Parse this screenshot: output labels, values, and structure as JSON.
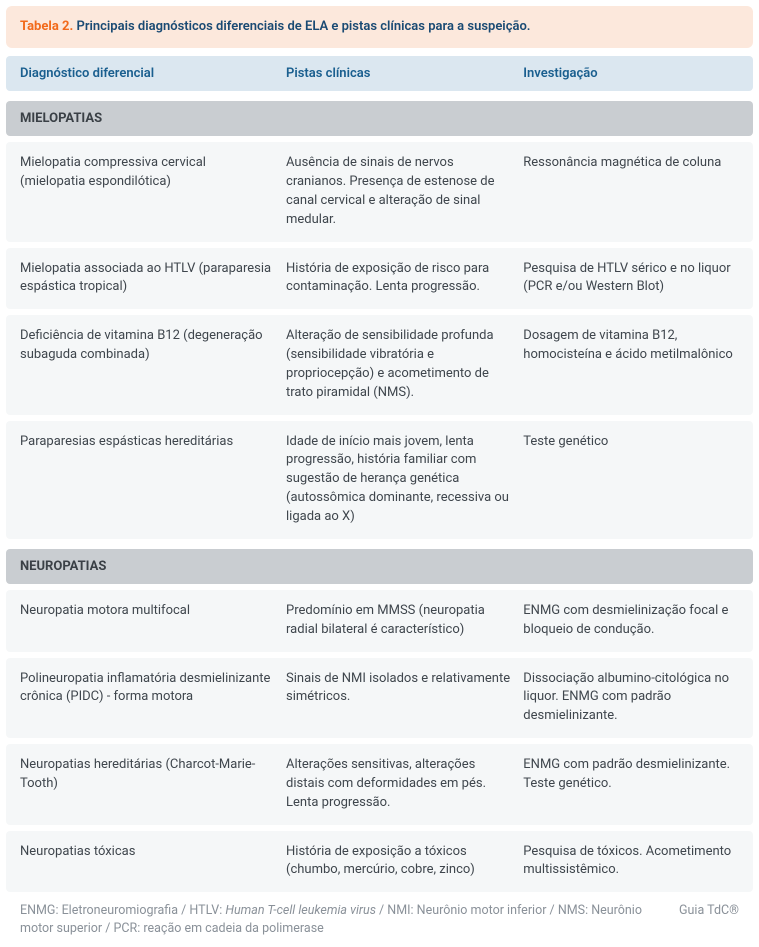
{
  "caption": {
    "label": "Tabela 2.",
    "text": "Principais diagnósticos diferenciais de ELA e pistas clínicas para a suspeição."
  },
  "columns": {
    "c1": "Diagnóstico diferencial",
    "c2": "Pistas clínicas",
    "c3": "Investigação"
  },
  "sections": [
    {
      "title": "MIELOPATIAS",
      "rows": [
        {
          "c1": "Mielopatia compressiva cervical (mielopatia espondilótica)",
          "c2": "Ausência de sinais de nervos cranianos. Presença de estenose de canal cervical e alteração de sinal medular.",
          "c3": "Ressonância magnética de coluna"
        },
        {
          "c1": "Mielopatia associada ao HTLV (paraparesia espástica tropical)",
          "c2": "História de exposição de risco para contaminação. Lenta progressão.",
          "c3": "Pesquisa de HTLV sérico e no liquor (PCR e/ou Western Blot)"
        },
        {
          "c1": "Deficiência de vitamina B12 (degeneração subaguda combinada)",
          "c2": "Alteração de sensibilidade profunda (sensibilidade vibratória e propriocepção) e acometimento de trato piramidal (NMS).",
          "c3": "Dosagem de vitamina B12, homocisteína e ácido metilmalônico"
        },
        {
          "c1": "Paraparesias espásticas hereditárias",
          "c2": "Idade de início mais jovem, lenta progressão, história familiar com sugestão de herança genética (autossômica dominante, recessiva ou ligada ao X)",
          "c3": "Teste genético"
        }
      ]
    },
    {
      "title": "NEUROPATIAS",
      "rows": [
        {
          "c1": "Neuropatia motora multifocal",
          "c2": "Predomínio em MMSS (neuropatia radial bilateral é característico)",
          "c3": "ENMG com desmielinização focal e bloqueio de condução."
        },
        {
          "c1": "Polineuropatia inflamatória desmielinizante crônica (PIDC) - forma motora",
          "c2": "Sinais de NMI isolados e relativamente simétricos.",
          "c3": "Dissociação albumino-citológica no liquor. ENMG com padrão desmielinizante."
        },
        {
          "c1": "Neuropatias hereditárias (Charcot-Marie-Tooth)",
          "c2": "Alterações sensitivas, alterações distais com deformidades em pés. Lenta progressão.",
          "c3": "ENMG com padrão desmielinizante. Teste genético."
        },
        {
          "c1": "Neuropatias tóxicas",
          "c2": "História de exposição a tóxicos (chumbo, mercúrio, cobre, zinco)",
          "c3": "Pesquisa de tóxicos. Acometimento multissistêmico."
        }
      ]
    }
  ],
  "footer": {
    "defs_html": "ENMG: Eletroneuromiografia / HTLV: <em>Human T-cell leukemia virus</em> / NMI: Neurônio motor inferior / NMS: Neurônio motor superior / PCR: reação em cadeia da polimerase",
    "brand": "Guia TdC®"
  },
  "style": {
    "caption_bg": "#fce8dc",
    "caption_label_color": "#f26a1b",
    "caption_text_color": "#1a4a73",
    "header_bg": "#dbe7f0",
    "header_text_color": "#1a5f8f",
    "section_bg": "#c9cdd1",
    "row_bg": "#f5f7f8",
    "body_text_color": "#3f464d",
    "footer_text_color": "#8a9199",
    "font_size_body": 13,
    "font_size_footer": 12.5,
    "col_widths_pct": [
      37,
      33,
      30
    ]
  }
}
